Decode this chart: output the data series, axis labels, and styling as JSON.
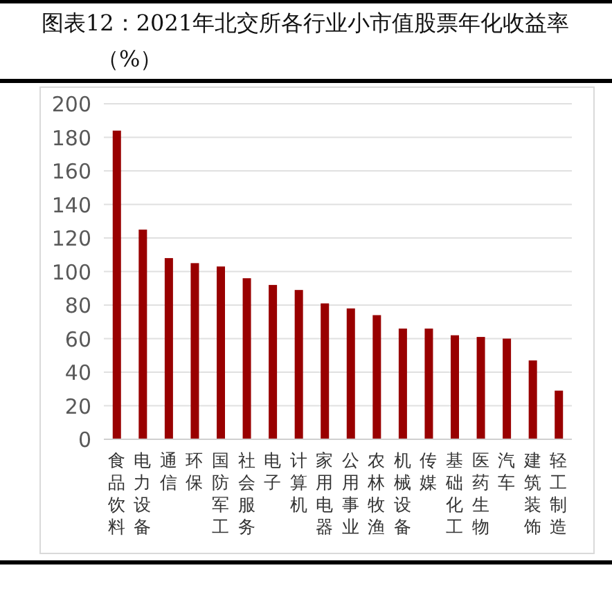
{
  "chart_data": {
    "type": "bar",
    "title": "图表12：2021年北交所各行业小市值股票年化收益率（%）",
    "categories": [
      "食品饮料",
      "电力设备",
      "通信",
      "环保",
      "国防军工",
      "社会服务",
      "电子",
      "计算机",
      "家用电器",
      "公用事业",
      "农林牧渔",
      "机械设备",
      "传媒",
      "基础化工",
      "医药生物",
      "汽车",
      "建筑装饰",
      "轻工制造"
    ],
    "values": [
      184,
      125,
      108,
      105,
      103,
      96,
      92,
      89,
      81,
      78,
      74,
      66,
      66,
      62,
      61,
      60,
      47,
      29
    ],
    "color": "#990000",
    "ylim": [
      0,
      200
    ],
    "yticks": [
      0,
      20,
      40,
      60,
      80,
      100,
      120,
      140,
      160,
      180,
      200
    ],
    "grid": "y"
  }
}
